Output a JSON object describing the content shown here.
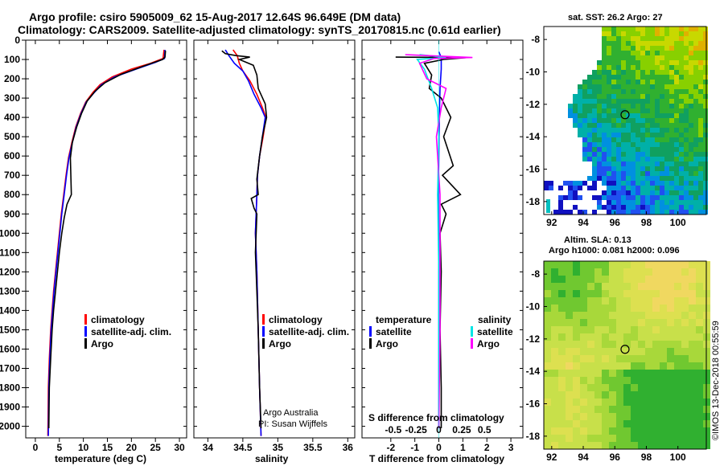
{
  "header": {
    "title_line1": "Argo profile: csiro 5905009_62 15-Aug-2017 12.64S 96.649E (DM data)",
    "title_line2": "Climatology: CARS2009. Satellite-adjusted climatology: synTS_20170815.nc (0.61d earlier)"
  },
  "colors": {
    "climatology": "#ff0000",
    "satellite": "#0000ff",
    "argo": "#000000",
    "satellite_salinity": "#00e5e5",
    "argo_salinity": "#ff00ff"
  },
  "credits": {
    "line1": "Argo Australia",
    "line2": "PI: Susan Wijffels",
    "stamp": "©IMOS 13-Dec-2018 00:55:59"
  },
  "chart_data": [
    {
      "type": "line",
      "panel": "temperature",
      "xlabel": "temperature (deg C)",
      "ylabel": "",
      "xlim": [
        -2,
        31.5
      ],
      "ylim": [
        2060,
        0
      ],
      "xticks": [
        0,
        5,
        10,
        15,
        20,
        25,
        30
      ],
      "yticks": [
        0,
        100,
        200,
        300,
        400,
        500,
        600,
        700,
        800,
        900,
        1000,
        1100,
        1200,
        1300,
        1400,
        1500,
        1600,
        1700,
        1800,
        1900,
        2000
      ],
      "legend": [
        "climatology",
        "satellite-adj. clim.",
        "Argo"
      ],
      "series": [
        {
          "name": "climatology",
          "color": "#ff0000",
          "x": [
            26.8,
            26.6,
            24,
            20,
            16,
            13.5,
            12,
            10.5,
            9.4,
            8.4,
            7.6,
            6.9,
            6.4,
            5.9,
            5.4,
            5.0,
            4.6,
            4.2,
            3.8,
            3.5,
            3.2,
            2.9,
            2.7,
            2.6
          ],
          "y": [
            50,
            95,
            120,
            150,
            190,
            230,
            270,
            320,
            380,
            450,
            530,
            610,
            700,
            800,
            900,
            1000,
            1100,
            1200,
            1300,
            1400,
            1500,
            1650,
            1800,
            2050
          ]
        },
        {
          "name": "satellite-adj. clim.",
          "color": "#0000ff",
          "x": [
            27.0,
            26.9,
            25,
            21,
            16.5,
            13.8,
            12.3,
            10.6,
            9.5,
            8.5,
            7.7,
            7.0,
            6.5,
            6.0,
            5.5,
            5.1,
            4.7,
            4.3,
            3.9,
            3.6,
            3.3,
            3.0,
            2.8,
            2.7
          ],
          "y": [
            50,
            95,
            115,
            150,
            190,
            230,
            270,
            320,
            380,
            450,
            530,
            610,
            700,
            800,
            900,
            1000,
            1100,
            1200,
            1300,
            1400,
            1500,
            1650,
            1800,
            2050
          ]
        },
        {
          "name": "Argo",
          "color": "#000000",
          "x": [
            27.1,
            27.0,
            26.5,
            23,
            18,
            14.5,
            12.4,
            10.8,
            9.6,
            8.6,
            7.7,
            7.3,
            7.5,
            6.6,
            6.0,
            5.5,
            5.0,
            4.6,
            4.2,
            3.8,
            3.5,
            3.2,
            2.9,
            2.8
          ],
          "y": [
            55,
            88,
            100,
            130,
            175,
            220,
            265,
            315,
            380,
            450,
            530,
            610,
            800,
            850,
            920,
            1000,
            1100,
            1200,
            1300,
            1400,
            1500,
            1650,
            1800,
            2010
          ]
        }
      ]
    },
    {
      "type": "line",
      "panel": "salinity",
      "xlabel": "salinity",
      "ylabel": "",
      "xlim": [
        33.8,
        36.1
      ],
      "ylim": [
        2060,
        0
      ],
      "xticks": [
        34,
        34.5,
        35,
        35.5,
        36
      ],
      "legend": [
        "climatology",
        "satellite-adj. clim.",
        "Argo"
      ],
      "series": [
        {
          "name": "climatology",
          "color": "#ff0000",
          "x": [
            34.36,
            34.42,
            34.45,
            34.5,
            34.6,
            34.7,
            34.78,
            34.83,
            34.79,
            34.74,
            34.71,
            34.7,
            34.69,
            34.68,
            34.7,
            34.72,
            34.74,
            34.76
          ],
          "y": [
            50,
            80,
            120,
            160,
            210,
            280,
            350,
            400,
            500,
            600,
            700,
            800,
            900,
            1000,
            1200,
            1500,
            1800,
            2050
          ]
        },
        {
          "name": "satellite-adj. clim.",
          "color": "#0000ff",
          "x": [
            34.25,
            34.3,
            34.38,
            34.5,
            34.58,
            34.66,
            34.76,
            34.82,
            34.78,
            34.74,
            34.71,
            34.7,
            34.69,
            34.68,
            34.7,
            34.72,
            34.74,
            34.76
          ],
          "y": [
            50,
            80,
            120,
            160,
            210,
            280,
            350,
            400,
            500,
            600,
            700,
            800,
            900,
            1000,
            1200,
            1500,
            1800,
            2050
          ]
        },
        {
          "name": "Argo",
          "color": "#000000",
          "x": [
            34.2,
            34.25,
            34.4,
            34.6,
            34.45,
            34.65,
            34.7,
            34.72,
            34.82,
            34.84,
            34.78,
            34.74,
            34.7,
            34.72,
            34.62,
            34.66,
            34.7,
            34.69,
            34.68,
            34.7,
            34.72,
            34.74,
            34.76
          ],
          "y": [
            55,
            70,
            80,
            88,
            100,
            130,
            180,
            250,
            330,
            400,
            500,
            600,
            720,
            800,
            820,
            870,
            900,
            1000,
            1100,
            1300,
            1500,
            1800,
            2010
          ]
        }
      ]
    },
    {
      "type": "line",
      "panel": "difference",
      "xlabel": "T difference from climatology",
      "title": "S difference from climatology",
      "ylabel": "",
      "xlim": [
        -3.2,
        3.5
      ],
      "ylim": [
        2060,
        0
      ],
      "xticks": [
        -2,
        -1,
        0,
        1,
        2,
        3
      ],
      "s_xticks": [
        "-0.5",
        "-0.25",
        "0",
        "0.25",
        "0.5"
      ],
      "legend": [
        "temperature",
        "satellite",
        "Argo",
        "salinity",
        "satellite",
        "Argo"
      ],
      "series": [
        {
          "name": "T satellite",
          "color": "#0000ff",
          "x": [
            0,
            0.1,
            0.1,
            0.05,
            0.02,
            0.0,
            -0.02,
            0,
            0,
            0
          ],
          "y": [
            60,
            90,
            150,
            250,
            400,
            600,
            800,
            1000,
            1500,
            2010
          ]
        },
        {
          "name": "T Argo",
          "color": "#000000",
          "x": [
            -1.8,
            1.2,
            0.2,
            -0.6,
            -0.3,
            -0.4,
            0.1,
            0.5,
            0.2,
            0.6,
            0.15,
            0.9,
            0.1,
            0.3,
            0.05,
            0.1,
            0.05,
            0.1,
            0.1
          ],
          "y": [
            88,
            90,
            100,
            120,
            180,
            250,
            300,
            400,
            500,
            650,
            700,
            800,
            850,
            900,
            1000,
            1200,
            1500,
            1800,
            2010
          ]
        },
        {
          "name": "S satellite",
          "color": "#00e5e5",
          "x": [
            -0.8,
            0.3,
            -0.9,
            -0.6,
            -0.3,
            -0.05,
            0,
            -0.05,
            0,
            0
          ],
          "y": [
            75,
            90,
            100,
            150,
            250,
            350,
            500,
            800,
            1200,
            2010
          ]
        },
        {
          "name": "S Argo",
          "color": "#ff00ff",
          "x": [
            -1.4,
            1.4,
            -0.2,
            -0.8,
            -0.5,
            0.3,
            0.1,
            -0.1,
            0.05,
            0.05,
            0
          ],
          "y": [
            75,
            90,
            95,
            120,
            200,
            250,
            350,
            500,
            800,
            1500,
            2010
          ]
        }
      ]
    },
    {
      "type": "heatmap",
      "panel": "sst_map",
      "title": "sat. SST: 26.2 Argo: 27",
      "xlim": [
        91.5,
        101.8
      ],
      "ylim": [
        -18.8,
        -7.2
      ],
      "xticks": [
        92,
        94,
        96,
        98,
        100
      ],
      "yticks": [
        -8,
        -10,
        -12,
        -14,
        -16,
        -18
      ],
      "marker": {
        "lon": 96.649,
        "lat": -12.64
      }
    },
    {
      "type": "heatmap",
      "panel": "sla_map",
      "title_line1": "Altim. SLA: 0.13",
      "title_line2": "Argo h1000: 0.081 h2000: 0.096",
      "xlim": [
        91.5,
        101.8
      ],
      "ylim": [
        -18.8,
        -7.2
      ],
      "xticks": [
        92,
        94,
        96,
        98,
        100
      ],
      "yticks": [
        -8,
        -10,
        -12,
        -14,
        -16,
        -18
      ],
      "marker": {
        "lon": 96.649,
        "lat": -12.64
      }
    }
  ]
}
